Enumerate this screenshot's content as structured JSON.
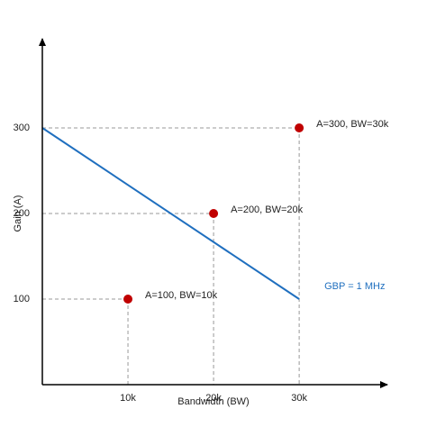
{
  "chart_data": {
    "type": "scatter",
    "x_label": "Bandwidth (BW)",
    "y_label": "Gain (A)",
    "xlim": [
      0,
      40300
    ],
    "ylim": [
      0,
      400
    ],
    "xticks": [
      {
        "value": 10000,
        "label": "10k"
      },
      {
        "value": 20000,
        "label": "20k"
      },
      {
        "value": 30000,
        "label": "30k"
      }
    ],
    "yticks": [
      100,
      200,
      300
    ],
    "series": [
      {
        "color": "#c00000",
        "x": [
          10000,
          20000,
          30000
        ],
        "values": [
          100,
          200,
          300
        ],
        "point_labels": [
          "A=100, BW=10k",
          "A=200, BW=20k",
          "A=300, BW=30k"
        ]
      },
      {
        "type": "line",
        "name": "GBP = 1 MHz",
        "color": "#1f6fbf",
        "x": [
          0,
          30000
        ],
        "values": [
          300,
          100
        ]
      }
    ]
  }
}
